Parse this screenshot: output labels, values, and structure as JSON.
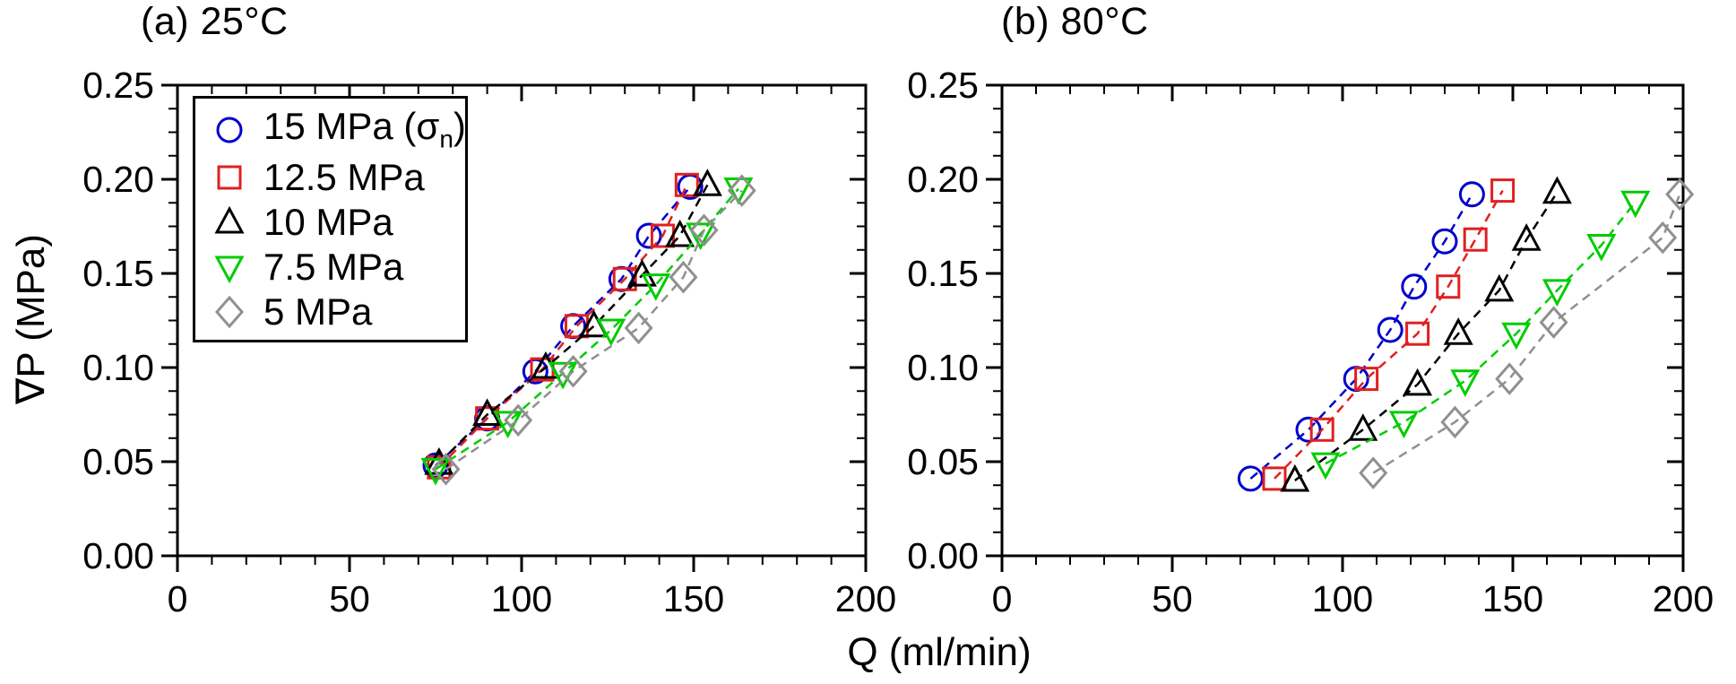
{
  "chart_data": {
    "type": "scatter",
    "xlabel": "Q (ml/min)",
    "ylabel": "∇P (MPa)",
    "xlim": [
      0,
      200
    ],
    "ylim": [
      0,
      0.25
    ],
    "x_major_ticks": [
      0,
      50,
      100,
      150,
      200
    ],
    "x_tick_labels": [
      "0",
      "50",
      "100",
      "150",
      "200"
    ],
    "x_minor_step": 10,
    "y_major_ticks": [
      0,
      0.05,
      0.1,
      0.15,
      0.2,
      0.25
    ],
    "y_tick_labels": [
      "0.00",
      "0.05",
      "0.10",
      "0.15",
      "0.20",
      "0.25"
    ],
    "y_minor_step": 0.0125,
    "grid": false,
    "legend_position": "upper-left panel (a)",
    "panels": [
      {
        "id": "a",
        "title": "(a) 25°C",
        "series": [
          {
            "name": "15 MPa (σn)",
            "marker": "circle",
            "color": "#0000CD",
            "points": [
              [
                75,
                0.048
              ],
              [
                90,
                0.073
              ],
              [
                104,
                0.098
              ],
              [
                115,
                0.122
              ],
              [
                129,
                0.147
              ],
              [
                137,
                0.17
              ],
              [
                149,
                0.196
              ]
            ]
          },
          {
            "name": "12.5 MPa",
            "marker": "square",
            "color": "#E02020",
            "points": [
              [
                76,
                0.047
              ],
              [
                90,
                0.073
              ],
              [
                106,
                0.099
              ],
              [
                116,
                0.122
              ],
              [
                130,
                0.147
              ],
              [
                141,
                0.17
              ],
              [
                148,
                0.197
              ]
            ]
          },
          {
            "name": "10 MPa",
            "marker": "triangle-up",
            "color": "#000000",
            "points": [
              [
                76,
                0.049
              ],
              [
                90,
                0.075
              ],
              [
                107,
                0.1
              ],
              [
                121,
                0.122
              ],
              [
                135,
                0.149
              ],
              [
                146,
                0.17
              ],
              [
                154,
                0.197
              ]
            ]
          },
          {
            "name": "7.5 MPa",
            "marker": "triangle-down",
            "color": "#00CC00",
            "points": [
              [
                75,
                0.046
              ],
              [
                96,
                0.071
              ],
              [
                112,
                0.097
              ],
              [
                126,
                0.12
              ],
              [
                139,
                0.144
              ],
              [
                152,
                0.171
              ],
              [
                163,
                0.195
              ]
            ]
          },
          {
            "name": "5 MPa",
            "marker": "diamond",
            "color": "#909090",
            "points": [
              [
                78,
                0.046
              ],
              [
                99,
                0.072
              ],
              [
                115,
                0.098
              ],
              [
                134,
                0.121
              ],
              [
                147,
                0.148
              ],
              [
                153,
                0.173
              ],
              [
                164,
                0.194
              ]
            ]
          }
        ]
      },
      {
        "id": "b",
        "title": "(b) 80°C",
        "series": [
          {
            "name": "15 MPa (σn)",
            "marker": "circle",
            "color": "#0000CD",
            "points": [
              [
                73,
                0.041
              ],
              [
                90,
                0.067
              ],
              [
                104,
                0.094
              ],
              [
                114,
                0.12
              ],
              [
                121,
                0.143
              ],
              [
                130,
                0.167
              ],
              [
                138,
                0.192
              ]
            ]
          },
          {
            "name": "12.5 MPa",
            "marker": "square",
            "color": "#E02020",
            "points": [
              [
                80,
                0.041
              ],
              [
                94,
                0.067
              ],
              [
                107,
                0.094
              ],
              [
                122,
                0.118
              ],
              [
                131,
                0.143
              ],
              [
                139,
                0.168
              ],
              [
                147,
                0.194
              ]
            ]
          },
          {
            "name": "10 MPa",
            "marker": "triangle-up",
            "color": "#000000",
            "points": [
              [
                86,
                0.04
              ],
              [
                106,
                0.067
              ],
              [
                122,
                0.091
              ],
              [
                134,
                0.118
              ],
              [
                146,
                0.141
              ],
              [
                154,
                0.168
              ],
              [
                163,
                0.193
              ]
            ]
          },
          {
            "name": "7.5 MPa",
            "marker": "triangle-down",
            "color": "#00CC00",
            "points": [
              [
                95,
                0.049
              ],
              [
                118,
                0.071
              ],
              [
                136,
                0.093
              ],
              [
                151,
                0.118
              ],
              [
                163,
                0.141
              ],
              [
                176,
                0.165
              ],
              [
                186,
                0.188
              ]
            ]
          },
          {
            "name": "5 MPa",
            "marker": "diamond",
            "color": "#909090",
            "points": [
              [
                109,
                0.044
              ],
              [
                133,
                0.071
              ],
              [
                149,
                0.094
              ],
              [
                162,
                0.124
              ],
              [
                194,
                0.169
              ],
              [
                199,
                0.192
              ]
            ]
          }
        ]
      }
    ],
    "legend": {
      "entries": [
        {
          "marker": "circle",
          "color": "#0000CD",
          "label": "15 MPa (σ",
          "sub": "n",
          "label_end": ")"
        },
        {
          "marker": "square",
          "color": "#E02020",
          "label": "12.5 MPa"
        },
        {
          "marker": "triangle-up",
          "color": "#000000",
          "label": "10 MPa"
        },
        {
          "marker": "triangle-down",
          "color": "#00CC00",
          "label": "7.5 MPa"
        },
        {
          "marker": "diamond",
          "color": "#909090",
          "label": "5 MPa"
        }
      ]
    }
  }
}
